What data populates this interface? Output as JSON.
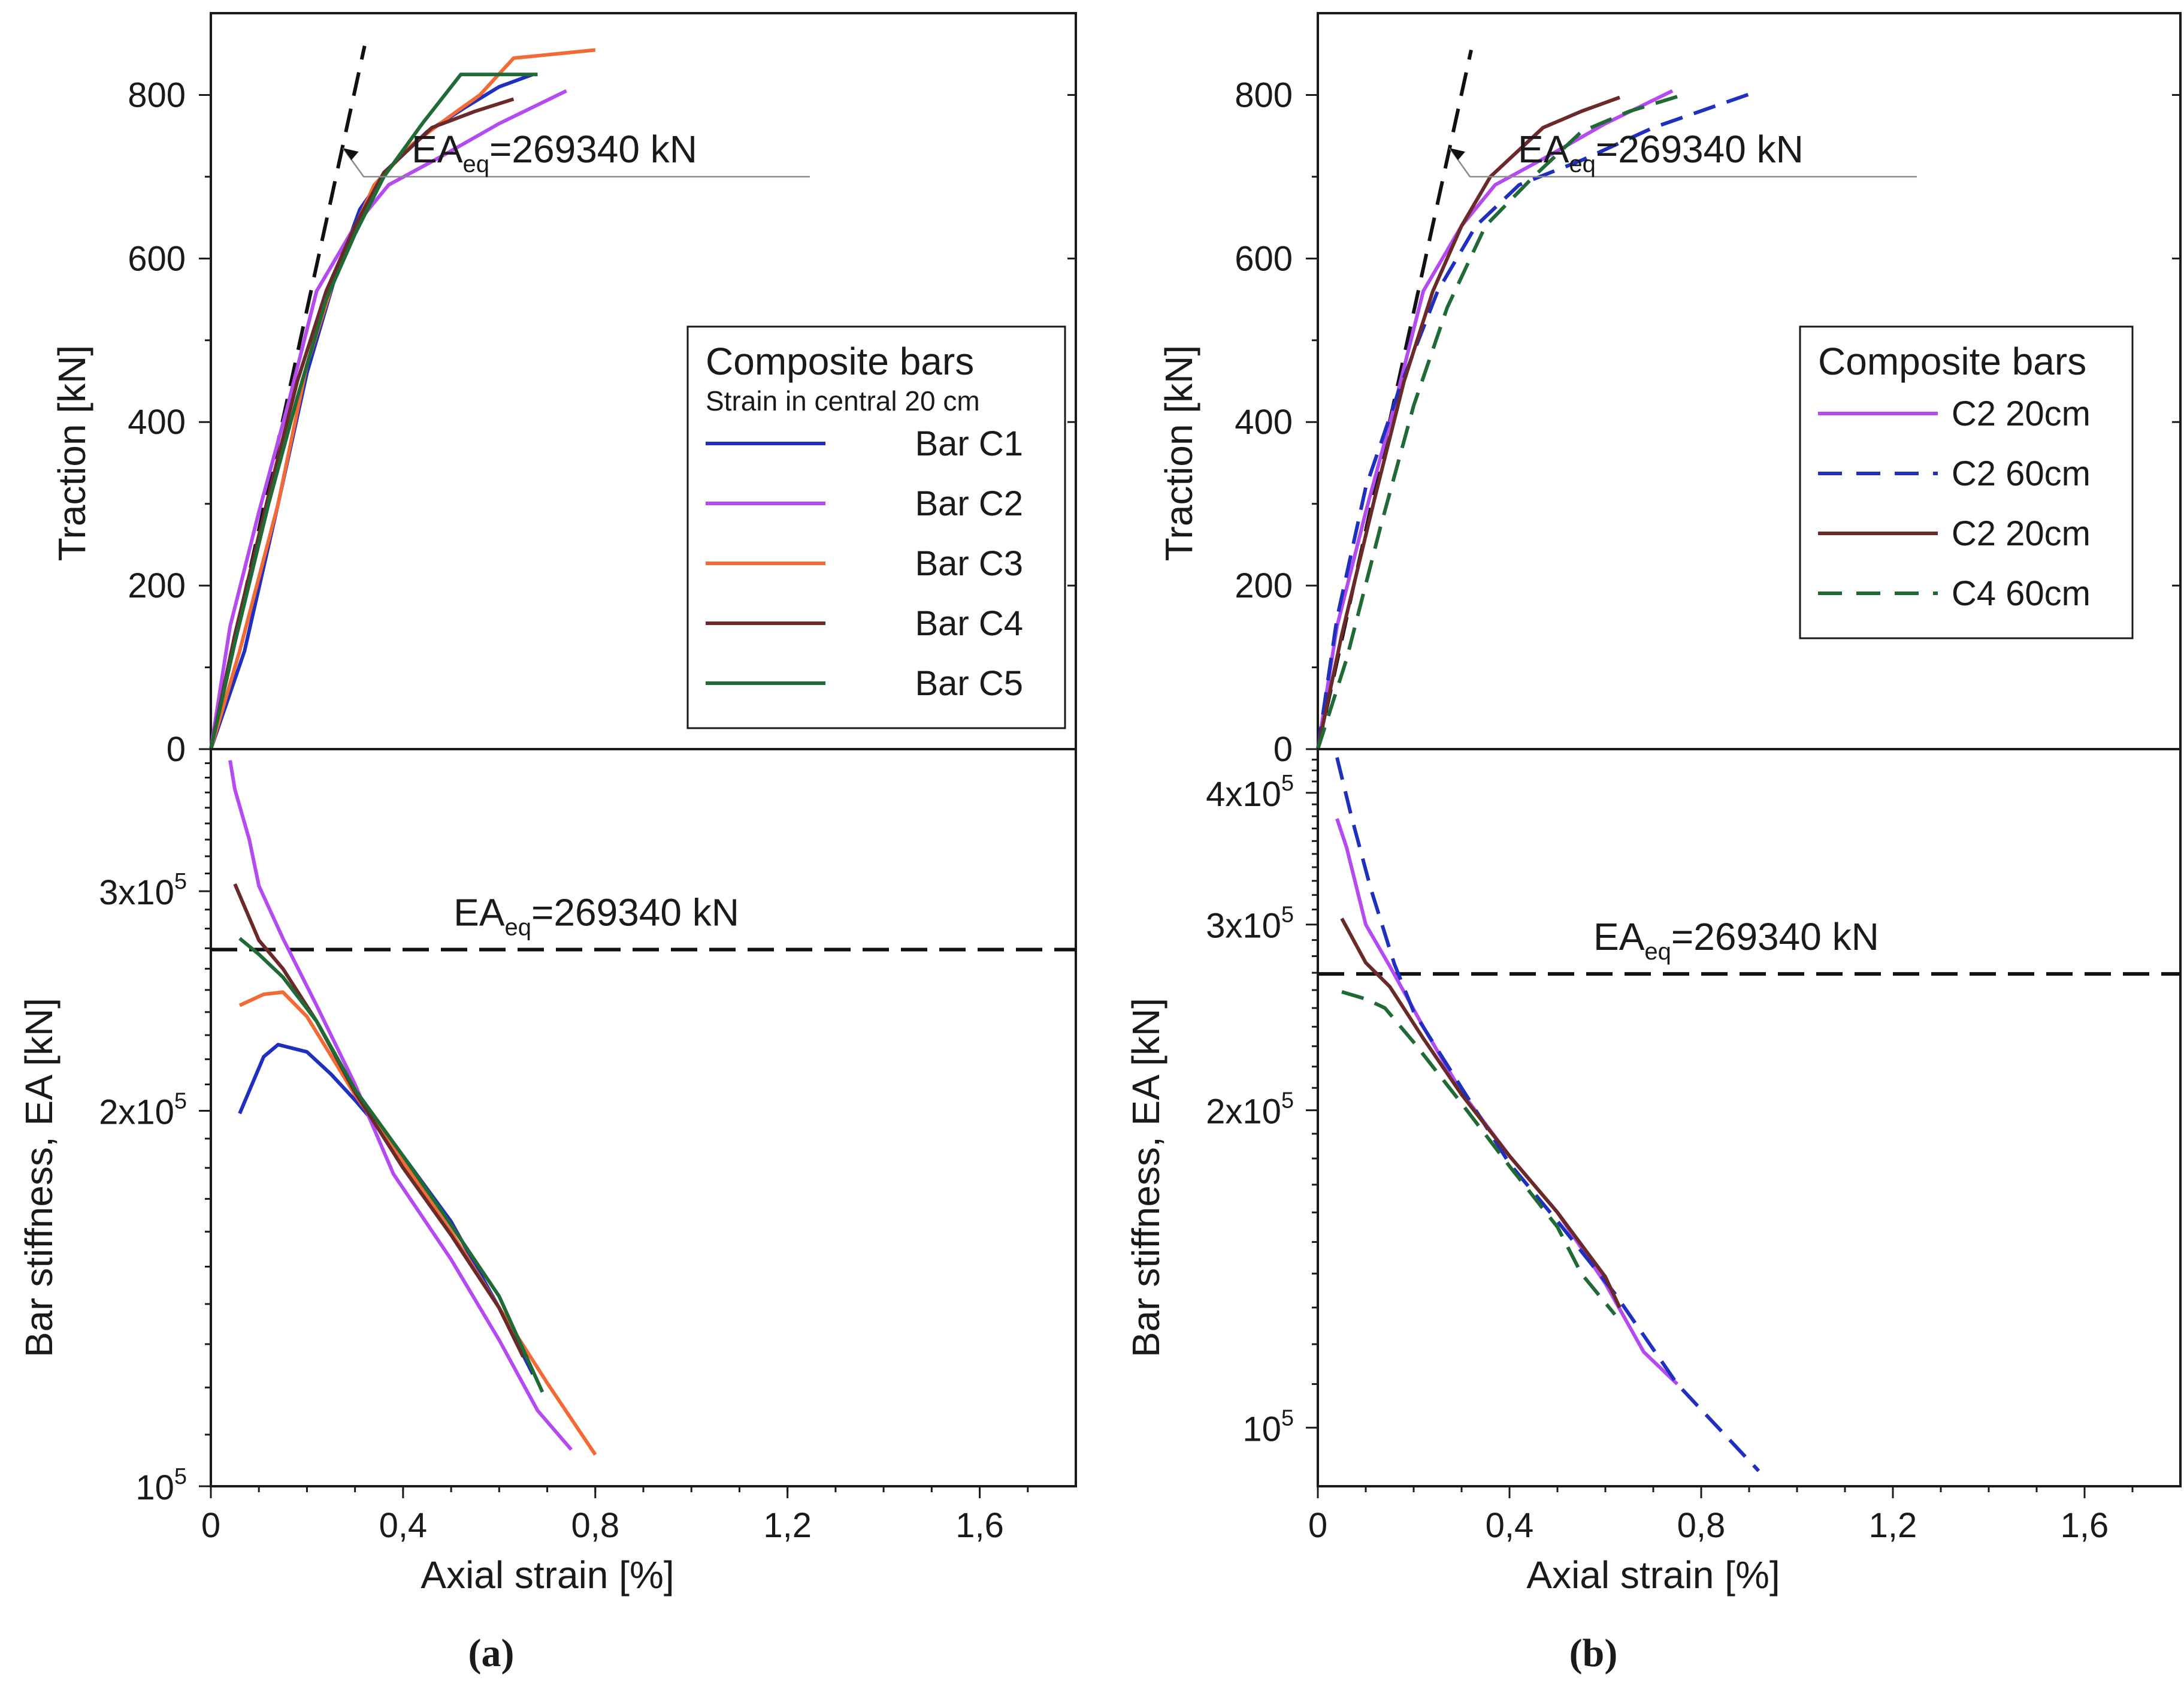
{
  "colors": {
    "axis": "#1a1a1a",
    "C1": "#1f2fbf",
    "C2": "#b44bf0",
    "C3": "#f26a35",
    "C4": "#6b2a2a",
    "C5": "#1f6a35",
    "reference": "#111111",
    "leader": "#8a8a8a"
  },
  "chart_data": [
    {
      "panel": "a",
      "panel_label": "(a)",
      "subplots": [
        {
          "id": "a-top",
          "type": "line",
          "ylabel": "Traction [kN]",
          "xlim": [
            0,
            1.8
          ],
          "ylim": [
            0,
            900
          ],
          "yticks": [
            0,
            200,
            400,
            600,
            800
          ],
          "ytick_labels": [
            "0",
            "200",
            "400",
            "600",
            "800"
          ],
          "legend": {
            "placement": "right",
            "title": "Composite bars",
            "subtitle": "Strain in central 20 cm",
            "entries": [
              {
                "label": "Bar C1",
                "color_key": "C1",
                "dash": "solid"
              },
              {
                "label": "Bar C2",
                "color_key": "C2",
                "dash": "solid"
              },
              {
                "label": "Bar C3",
                "color_key": "C3",
                "dash": "solid"
              },
              {
                "label": "Bar C4",
                "color_key": "C4",
                "dash": "solid"
              },
              {
                "label": "Bar C5",
                "color_key": "C5",
                "dash": "solid"
              }
            ]
          },
          "reference_line": {
            "x": [
              0,
              0.32
            ],
            "y": [
              0,
              860
            ]
          },
          "annotation": {
            "main": "EA",
            "sub": "eq",
            "rest": "=269340 kN",
            "arrow_point": [
              0.275,
              735
            ],
            "text_anchor": [
              0.53,
              700
            ]
          },
          "series": [
            {
              "name": "Bar C1",
              "color_key": "C1",
              "dash": "solid",
              "x": [
                0,
                0.07,
                0.14,
                0.2,
                0.26,
                0.31,
                0.37,
                0.45,
                0.53,
                0.6,
                0.67
              ],
              "y": [
                0,
                120,
                300,
                460,
                580,
                660,
                710,
                755,
                785,
                810,
                825
              ]
            },
            {
              "name": "Bar C2",
              "color_key": "C2",
              "dash": "solid",
              "x": [
                0,
                0.04,
                0.1,
                0.16,
                0.22,
                0.3,
                0.37,
                0.48,
                0.6,
                0.74
              ],
              "y": [
                0,
                150,
                290,
                420,
                560,
                640,
                690,
                725,
                765,
                805
              ]
            },
            {
              "name": "Bar C3",
              "color_key": "C3",
              "dash": "solid",
              "x": [
                0,
                0.06,
                0.14,
                0.2,
                0.27,
                0.34,
                0.42,
                0.5,
                0.56,
                0.63,
                0.8
              ],
              "y": [
                0,
                120,
                300,
                470,
                600,
                690,
                740,
                775,
                800,
                845,
                855
              ]
            },
            {
              "name": "Bar C4",
              "color_key": "C4",
              "dash": "solid",
              "x": [
                0,
                0.05,
                0.12,
                0.18,
                0.24,
                0.3,
                0.36,
                0.46,
                0.55,
                0.63
              ],
              "y": [
                0,
                140,
                310,
                450,
                560,
                640,
                705,
                760,
                780,
                795
              ]
            },
            {
              "name": "Bar C5",
              "color_key": "C5",
              "dash": "solid",
              "x": [
                0,
                0.05,
                0.12,
                0.18,
                0.24,
                0.3,
                0.36,
                0.44,
                0.52,
                0.58,
                0.68
              ],
              "y": [
                0,
                130,
                300,
                430,
                550,
                630,
                700,
                765,
                825,
                825,
                825
              ]
            }
          ]
        },
        {
          "id": "a-bottom",
          "type": "line",
          "xlabel": "Axial strain [%]",
          "ylabel": "Bar stiffness, EA [kN]",
          "xlim": [
            0,
            1.8
          ],
          "ylim": [
            100000,
            390000
          ],
          "yscale": "log",
          "xticks": [
            0,
            0.4,
            0.8,
            1.2,
            1.6
          ],
          "xtick_labels": [
            "0",
            "0,4",
            "0,8",
            "1,2",
            "1,6"
          ],
          "yticks_major": [
            100000,
            200000,
            300000
          ],
          "ytick_labels": [
            {
              "mant": "10",
              "exp": "5"
            },
            {
              "mant": "2x10",
              "exp": "5"
            },
            {
              "mant": "3x10",
              "exp": "5"
            }
          ],
          "reference_hline": 269340,
          "annotation": {
            "main": "EA",
            "sub": "eq",
            "rest": "=269340 kN",
            "at": [
              0.53,
              282000
            ]
          },
          "series": [
            {
              "name": "Bar C1",
              "color_key": "C1",
              "dash": "solid",
              "x": [
                0.06,
                0.11,
                0.14,
                0.2,
                0.25,
                0.3,
                0.4,
                0.5,
                0.6,
                0.67
              ],
              "y": [
                199000,
                221000,
                226000,
                223000,
                214000,
                204000,
                184000,
                163000,
                139000,
                123000
              ]
            },
            {
              "name": "Bar C2",
              "color_key": "C2",
              "dash": "solid",
              "x": [
                0.04,
                0.05,
                0.08,
                0.1,
                0.15,
                0.22,
                0.3,
                0.38,
                0.5,
                0.6,
                0.68,
                0.75
              ],
              "y": [
                382000,
                362000,
                330000,
                303000,
                275000,
                243000,
                210000,
                178000,
                152000,
                131000,
                115000,
                107000
              ]
            },
            {
              "name": "Bar C3",
              "color_key": "C3",
              "dash": "solid",
              "x": [
                0.06,
                0.11,
                0.15,
                0.2,
                0.3,
                0.4,
                0.5,
                0.6,
                0.7,
                0.8
              ],
              "y": [
                243000,
                248000,
                249000,
                238000,
                206000,
                182000,
                160000,
                139000,
                121000,
                106000
              ]
            },
            {
              "name": "Bar C4",
              "color_key": "C4",
              "dash": "solid",
              "x": [
                0.05,
                0.1,
                0.15,
                0.22,
                0.3,
                0.4,
                0.5,
                0.6,
                0.65
              ],
              "y": [
                304000,
                274000,
                260000,
                236000,
                207000,
                180000,
                159000,
                139000,
                127000
              ]
            },
            {
              "name": "Bar C5",
              "color_key": "C5",
              "dash": "solid",
              "x": [
                0.06,
                0.1,
                0.15,
                0.22,
                0.3,
                0.4,
                0.5,
                0.6,
                0.69
              ],
              "y": [
                275000,
                267000,
                256000,
                236000,
                208000,
                184000,
                162000,
                142000,
                119000
              ]
            }
          ]
        }
      ]
    },
    {
      "panel": "b",
      "panel_label": "(b)",
      "subplots": [
        {
          "id": "b-top",
          "type": "line",
          "ylabel": "Traction [kN]",
          "xlim": [
            0,
            1.8
          ],
          "ylim": [
            0,
            900
          ],
          "yticks": [
            0,
            200,
            400,
            600,
            800
          ],
          "ytick_labels": [
            "0",
            "200",
            "400",
            "600",
            "800"
          ],
          "legend": {
            "placement": "right",
            "title": "Composite bars",
            "subtitle": "",
            "entries": [
              {
                "label": "C2 20cm",
                "color_key": "C2",
                "dash": "solid"
              },
              {
                "label": "C2 60cm",
                "color_key": "C1",
                "dash": "dashed"
              },
              {
                "label": "C2 20cm",
                "color_key": "C4",
                "dash": "solid"
              },
              {
                "label": "C4 60cm",
                "color_key": "C5",
                "dash": "dashed"
              }
            ]
          },
          "reference_line": {
            "x": [
              0,
              0.32
            ],
            "y": [
              0,
              855
            ]
          },
          "annotation": {
            "main": "EA",
            "sub": "eq",
            "rest": "=269340 kN",
            "arrow_point": [
              0.275,
              735
            ],
            "text_anchor": [
              0.53,
              700
            ]
          },
          "series": [
            {
              "name": "C2 20cm",
              "color_key": "C2",
              "dash": "solid",
              "x": [
                0,
                0.04,
                0.1,
                0.16,
                0.22,
                0.3,
                0.37,
                0.48,
                0.6,
                0.74
              ],
              "y": [
                0,
                150,
                290,
                420,
                560,
                640,
                690,
                725,
                765,
                805
              ]
            },
            {
              "name": "C2 60cm",
              "color_key": "C1",
              "dash": "dashed",
              "x": [
                0,
                0.04,
                0.1,
                0.17,
                0.25,
                0.33,
                0.42,
                0.55,
                0.7,
                0.92
              ],
              "y": [
                0,
                160,
                320,
                440,
                560,
                640,
                690,
                720,
                760,
                805
              ]
            },
            {
              "name": "C2 20cm",
              "color_key": "C4",
              "dash": "solid",
              "x": [
                0,
                0.05,
                0.12,
                0.18,
                0.24,
                0.3,
                0.36,
                0.47,
                0.55,
                0.63
              ],
              "y": [
                0,
                140,
                310,
                450,
                560,
                640,
                700,
                760,
                780,
                797
              ]
            },
            {
              "name": "C4 60cm",
              "color_key": "C5",
              "dash": "dashed",
              "x": [
                0,
                0.06,
                0.13,
                0.2,
                0.27,
                0.35,
                0.45,
                0.55,
                0.65,
                0.75
              ],
              "y": [
                0,
                110,
                270,
                420,
                540,
                640,
                700,
                755,
                780,
                798
              ]
            }
          ]
        },
        {
          "id": "b-bottom",
          "type": "line",
          "xlabel": "Axial strain [%]",
          "ylabel": "Bar stiffness, EA [kN]",
          "xlim": [
            0,
            1.8
          ],
          "ylim": [
            88000,
            440000
          ],
          "yscale": "log",
          "xticks": [
            0,
            0.4,
            0.8,
            1.2,
            1.6
          ],
          "xtick_labels": [
            "0",
            "0,4",
            "0,8",
            "1,2",
            "1,6"
          ],
          "yticks_major": [
            100000,
            200000,
            300000,
            400000
          ],
          "ytick_labels": [
            {
              "mant": "10",
              "exp": "5"
            },
            {
              "mant": "2x10",
              "exp": "5"
            },
            {
              "mant": "3x10",
              "exp": "5"
            },
            {
              "mant": "4x10",
              "exp": "5"
            }
          ],
          "reference_hline": 269340,
          "annotation": {
            "main": "EA",
            "sub": "eq",
            "rest": "=269340 kN",
            "at": [
              0.6,
              284000
            ]
          },
          "series": [
            {
              "name": "C2 20cm",
              "color_key": "C2",
              "dash": "solid",
              "x": [
                0.04,
                0.06,
                0.1,
                0.15,
                0.22,
                0.3,
                0.4,
                0.5,
                0.6,
                0.68,
                0.75
              ],
              "y": [
                378000,
                355000,
                300000,
                274000,
                240000,
                208000,
                181000,
                160000,
                137000,
                118000,
                110000
              ]
            },
            {
              "name": "C2 60cm",
              "color_key": "C1",
              "dash": "dashed",
              "x": [
                0.04,
                0.07,
                0.11,
                0.16,
                0.2,
                0.3,
                0.4,
                0.5,
                0.62,
                0.75,
                0.92
              ],
              "y": [
                432000,
                380000,
                325000,
                275000,
                248000,
                210000,
                178000,
                157000,
                134000,
                110000,
                91000
              ]
            },
            {
              "name": "C2 20cm",
              "color_key": "C4",
              "dash": "solid",
              "x": [
                0.05,
                0.1,
                0.15,
                0.22,
                0.3,
                0.4,
                0.5,
                0.6,
                0.63
              ],
              "y": [
                304000,
                276000,
                262000,
                234000,
                207000,
                181000,
                160000,
                139000,
                130000
              ]
            },
            {
              "name": "C4 60cm",
              "color_key": "C5",
              "dash": "dashed",
              "x": [
                0.05,
                0.1,
                0.14,
                0.2,
                0.3,
                0.4,
                0.5,
                0.55,
                0.62
              ],
              "y": [
                259000,
                255000,
                250000,
                232000,
                203000,
                177000,
                155000,
                140000,
                128000
              ]
            }
          ]
        }
      ]
    }
  ]
}
